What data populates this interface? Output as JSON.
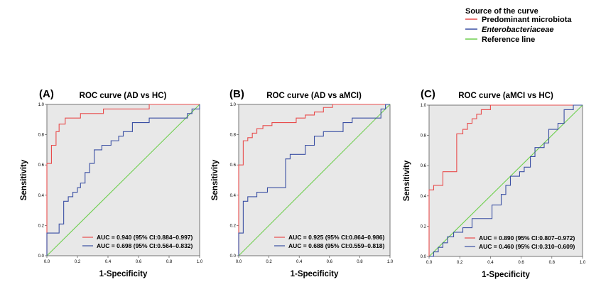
{
  "legend": {
    "title": "Source of the curve",
    "items": [
      {
        "label": "Predominant  microbiota",
        "color": "#e84c4c",
        "italic": false
      },
      {
        "label": "Enterobacteriaceae",
        "color": "#3a4fa3",
        "italic": true
      },
      {
        "label": "Reference line",
        "color": "#6fcf4f",
        "italic": false
      }
    ]
  },
  "colors": {
    "predominant": "#e84c4c",
    "enterobacteriaceae": "#3a4fa3",
    "reference": "#6fcf4f",
    "plot_background": "#e8e8e8"
  },
  "chart_data": [
    {
      "type": "line",
      "panel": "(A)",
      "title": "ROC curve (AD vs HC)",
      "xlabel": "1-Specificity",
      "ylabel": "Sensitivity",
      "xlim": [
        0,
        1
      ],
      "ylim": [
        0,
        1
      ],
      "x_ticks": [
        "0.0",
        "0.2",
        "0.4",
        "0.6",
        "0.8",
        "1.0"
      ],
      "y_ticks": [
        "0.0",
        "0.2",
        "0.4",
        "0.6",
        "0.8",
        "1.0"
      ],
      "grid": false,
      "series": [
        {
          "name": "Predominant  microbiota",
          "color": "#e84c4c",
          "auc_label": "AUC = 0.940 (95% CI:0.884–0.997)",
          "x": [
            0,
            0,
            0.03,
            0.03,
            0.06,
            0.06,
            0.08,
            0.08,
            0.12,
            0.12,
            0.22,
            0.22,
            0.37,
            0.37,
            0.67,
            0.67,
            1.0
          ],
          "y": [
            0,
            0.61,
            0.61,
            0.73,
            0.73,
            0.82,
            0.82,
            0.87,
            0.87,
            0.91,
            0.91,
            0.94,
            0.94,
            0.97,
            0.97,
            1.0,
            1.0
          ]
        },
        {
          "name": "Enterobacteriaceae",
          "color": "#3a4fa3",
          "auc_label": "AUC = 0.698 (95% CI:0.564–0.832)",
          "x": [
            0,
            0,
            0.08,
            0.08,
            0.11,
            0.11,
            0.14,
            0.14,
            0.17,
            0.17,
            0.2,
            0.2,
            0.22,
            0.22,
            0.25,
            0.25,
            0.28,
            0.28,
            0.31,
            0.31,
            0.36,
            0.36,
            0.42,
            0.42,
            0.47,
            0.47,
            0.5,
            0.5,
            0.56,
            0.56,
            0.67,
            0.67,
            0.92,
            0.92,
            0.95,
            0.95,
            1.0,
            1.0
          ],
          "y": [
            0,
            0.15,
            0.15,
            0.21,
            0.21,
            0.36,
            0.36,
            0.39,
            0.39,
            0.42,
            0.42,
            0.45,
            0.45,
            0.48,
            0.48,
            0.55,
            0.55,
            0.61,
            0.61,
            0.7,
            0.7,
            0.73,
            0.73,
            0.76,
            0.76,
            0.79,
            0.79,
            0.82,
            0.82,
            0.88,
            0.88,
            0.91,
            0.91,
            0.94,
            0.94,
            0.97,
            0.97,
            1.0
          ]
        },
        {
          "name": "Reference line",
          "color": "#6fcf4f",
          "x": [
            0,
            1
          ],
          "y": [
            0,
            1
          ]
        }
      ]
    },
    {
      "type": "line",
      "panel": "(B)",
      "title": "ROC curve (AD vs aMCI)",
      "xlabel": "1-Specificity",
      "ylabel": "Sensitivity",
      "xlim": [
        0,
        1
      ],
      "ylim": [
        0,
        1
      ],
      "x_ticks": [
        "0.0",
        "0.2",
        "0.4",
        "0.6",
        "0.8",
        "1.0"
      ],
      "y_ticks": [
        "0.0",
        "0.2",
        "0.4",
        "0.6",
        "0.8",
        "1.0"
      ],
      "grid": false,
      "series": [
        {
          "name": "Predominant  microbiota",
          "color": "#e84c4c",
          "auc_label": "AUC = 0.925 (95% CI:0.864–0.986)",
          "x": [
            0,
            0,
            0.03,
            0.03,
            0.06,
            0.06,
            0.09,
            0.09,
            0.12,
            0.12,
            0.16,
            0.16,
            0.22,
            0.22,
            0.38,
            0.38,
            0.44,
            0.44,
            0.5,
            0.5,
            0.56,
            0.56,
            0.62,
            0.62,
            1.0
          ],
          "y": [
            0,
            0.6,
            0.6,
            0.76,
            0.76,
            0.78,
            0.78,
            0.81,
            0.81,
            0.84,
            0.84,
            0.86,
            0.86,
            0.88,
            0.88,
            0.91,
            0.91,
            0.93,
            0.93,
            0.95,
            0.95,
            0.98,
            0.98,
            1.0,
            1.0
          ]
        },
        {
          "name": "Enterobacteriaceae",
          "color": "#3a4fa3",
          "auc_label": "AUC = 0.688 (95% CI:0.559–0.818)",
          "x": [
            0,
            0,
            0.03,
            0.03,
            0.06,
            0.06,
            0.12,
            0.12,
            0.19,
            0.19,
            0.31,
            0.31,
            0.34,
            0.34,
            0.44,
            0.44,
            0.5,
            0.5,
            0.56,
            0.56,
            0.69,
            0.69,
            0.75,
            0.75,
            0.94,
            0.94,
            0.97,
            0.97,
            1.0
          ],
          "y": [
            0,
            0.15,
            0.15,
            0.36,
            0.36,
            0.39,
            0.39,
            0.42,
            0.42,
            0.45,
            0.45,
            0.64,
            0.64,
            0.67,
            0.67,
            0.73,
            0.73,
            0.79,
            0.79,
            0.82,
            0.82,
            0.88,
            0.88,
            0.91,
            0.91,
            0.97,
            0.97,
            1.0,
            1.0
          ]
        },
        {
          "name": "Reference line",
          "color": "#6fcf4f",
          "x": [
            0,
            1
          ],
          "y": [
            0,
            1
          ]
        }
      ]
    },
    {
      "type": "line",
      "panel": "(C)",
      "title": "ROC curve (aMCI vs HC)",
      "xlabel": "1-Specificity",
      "ylabel": "Sensitivity",
      "xlim": [
        0,
        1
      ],
      "ylim": [
        0,
        1
      ],
      "x_ticks": [
        "0.0",
        "0.2",
        "0.4",
        "0.6",
        "0.8",
        "1.0"
      ],
      "y_ticks": [
        "0.0",
        "0.2",
        "0.4",
        "0.6",
        "0.8",
        "1.0"
      ],
      "grid": false,
      "series": [
        {
          "name": "Predominant  microbiota",
          "color": "#e84c4c",
          "auc_label": "AUC = 0.890 (95% CI:0.807–0.972)",
          "x": [
            0,
            0,
            0.03,
            0.03,
            0.09,
            0.09,
            0.12,
            0.12,
            0.18,
            0.18,
            0.22,
            0.22,
            0.25,
            0.25,
            0.28,
            0.28,
            0.31,
            0.31,
            0.34,
            0.34,
            0.4,
            0.4,
            1.0
          ],
          "y": [
            0,
            0.44,
            0.44,
            0.47,
            0.47,
            0.56,
            0.56,
            0.56,
            0.56,
            0.81,
            0.81,
            0.84,
            0.84,
            0.88,
            0.88,
            0.91,
            0.91,
            0.94,
            0.94,
            0.97,
            0.97,
            1.0,
            1.0
          ]
        },
        {
          "name": "Enterobacteriaceae",
          "color": "#3a4fa3",
          "auc_label": "AUC = 0.460 (95% CI:0.310–0.609)",
          "x": [
            0,
            0.03,
            0.03,
            0.06,
            0.06,
            0.09,
            0.09,
            0.12,
            0.12,
            0.16,
            0.16,
            0.22,
            0.22,
            0.28,
            0.28,
            0.41,
            0.41,
            0.47,
            0.47,
            0.5,
            0.5,
            0.53,
            0.53,
            0.59,
            0.59,
            0.62,
            0.62,
            0.66,
            0.66,
            0.69,
            0.69,
            0.75,
            0.75,
            0.78,
            0.78,
            0.84,
            0.84,
            0.88,
            0.88,
            0.94,
            0.94,
            1.0
          ],
          "y": [
            0,
            0,
            0.03,
            0.03,
            0.06,
            0.06,
            0.09,
            0.09,
            0.13,
            0.13,
            0.16,
            0.16,
            0.19,
            0.19,
            0.25,
            0.25,
            0.34,
            0.34,
            0.41,
            0.41,
            0.47,
            0.47,
            0.53,
            0.53,
            0.56,
            0.56,
            0.59,
            0.59,
            0.66,
            0.66,
            0.72,
            0.72,
            0.75,
            0.75,
            0.84,
            0.84,
            0.88,
            0.88,
            0.97,
            0.97,
            1.0,
            1.0
          ]
        },
        {
          "name": "Reference line",
          "color": "#6fcf4f",
          "x": [
            0,
            1
          ],
          "y": [
            0,
            1
          ]
        }
      ]
    }
  ]
}
